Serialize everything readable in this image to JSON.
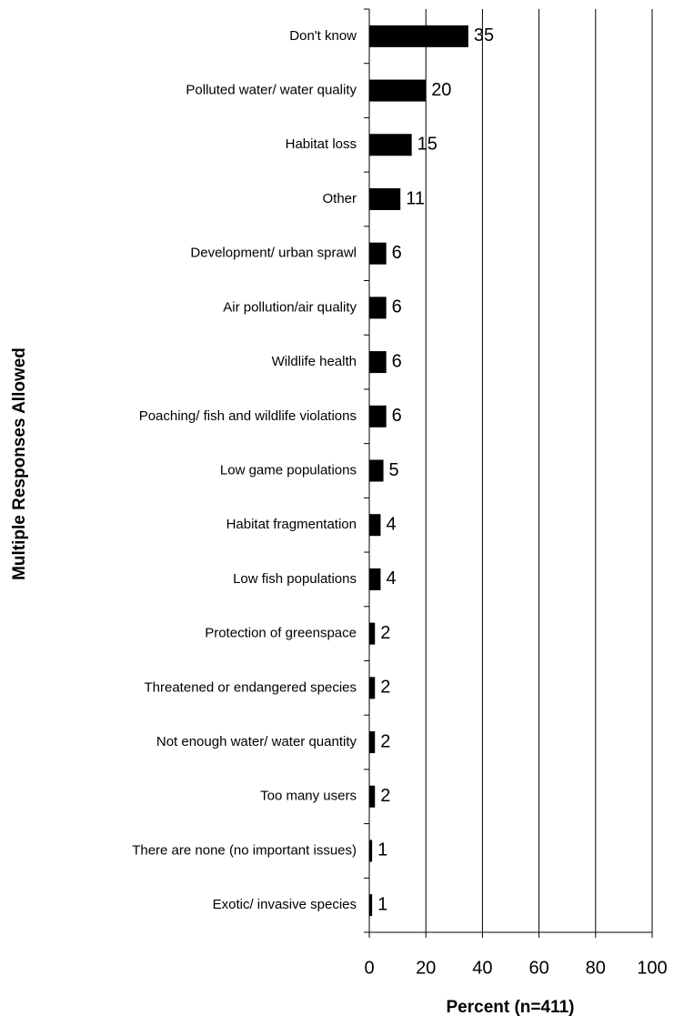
{
  "chart_data": {
    "type": "barh",
    "xlabel": "Percent (n=411)",
    "ylabel": "Multiple Responses Allowed",
    "categories": [
      "Don't know",
      "Polluted water/ water quality",
      "Habitat loss",
      "Other",
      "Development/ urban sprawl",
      "Air pollution/air quality",
      "Wildlife health",
      "Poaching/ fish and wildlife violations",
      "Low game populations",
      "Habitat fragmentation",
      "Low fish populations",
      "Protection of greenspace",
      "Threatened or endangered species",
      "Not enough water/ water quantity",
      "Too many users",
      "There are none (no important issues)",
      "Exotic/ invasive species"
    ],
    "values": [
      35,
      20,
      15,
      11,
      6,
      6,
      6,
      6,
      5,
      4,
      4,
      2,
      2,
      2,
      2,
      1,
      1
    ],
    "color": "#000000",
    "xlim": [
      0,
      100
    ],
    "xticks": [
      0,
      20,
      40,
      60,
      80,
      100
    ],
    "grid": true
  }
}
